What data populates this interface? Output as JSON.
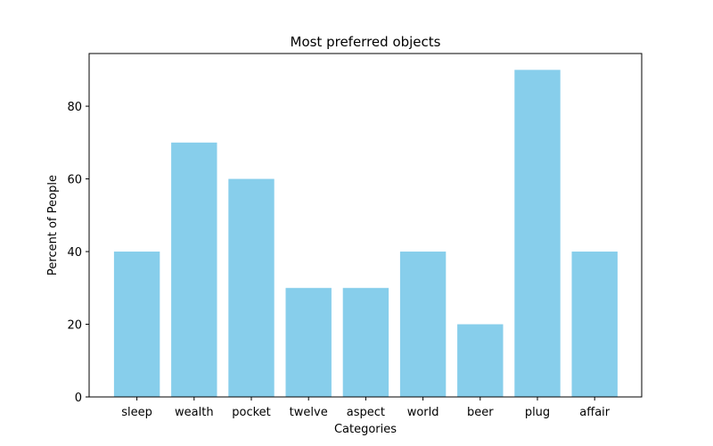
{
  "chart_data": {
    "type": "bar",
    "title": "Most preferred objects",
    "xlabel": "Categories",
    "ylabel": "Percent of People",
    "categories": [
      "sleep",
      "wealth",
      "pocket",
      "twelve",
      "aspect",
      "world",
      "beer",
      "plug",
      "affair"
    ],
    "values": [
      40,
      70,
      60,
      30,
      30,
      40,
      20,
      90,
      40
    ],
    "ylim": [
      0,
      94.5
    ],
    "yticks": [
      0,
      20,
      40,
      60,
      80
    ],
    "grid": false,
    "bar_color": "#87CEEB"
  }
}
